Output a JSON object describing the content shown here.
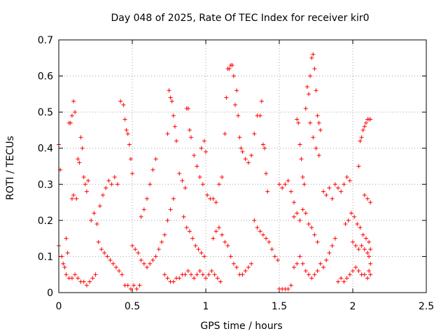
{
  "chart_data": {
    "type": "scatter",
    "title": "Day 048 of 2025, Rate Of TEC Index for receiver kir0",
    "xlabel": "GPS time / hours",
    "ylabel": "ROTI / TECUs",
    "xlim": [
      0,
      2.5
    ],
    "ylim": [
      0,
      0.7
    ],
    "xticks": [
      0,
      0.5,
      1,
      1.5,
      2,
      2.5
    ],
    "xtick_labels": [
      "0",
      "0.5",
      "1",
      "1.5",
      "2",
      "2.5"
    ],
    "yticks": [
      0,
      0.1,
      0.2,
      0.3,
      0.4,
      0.5,
      0.6,
      0.7
    ],
    "ytick_labels": [
      "0",
      "0.1",
      "0.2",
      "0.3",
      "0.4",
      "0.5",
      "0.6",
      "0.7"
    ],
    "grid": true,
    "marker": "+",
    "color": "#ff0000",
    "series": [
      {
        "values": [
          [
            0.0,
            0.41
          ],
          [
            0.01,
            0.34
          ],
          [
            0.0,
            0.13
          ],
          [
            0.02,
            0.1
          ],
          [
            0.03,
            0.08
          ],
          [
            0.04,
            0.07
          ],
          [
            0.05,
            0.15
          ],
          [
            0.06,
            0.11
          ],
          [
            0.07,
            0.47
          ],
          [
            0.08,
            0.47
          ],
          [
            0.09,
            0.49
          ],
          [
            0.1,
            0.53
          ],
          [
            0.11,
            0.5
          ],
          [
            0.09,
            0.26
          ],
          [
            0.1,
            0.27
          ],
          [
            0.12,
            0.26
          ],
          [
            0.13,
            0.37
          ],
          [
            0.14,
            0.36
          ],
          [
            0.15,
            0.43
          ],
          [
            0.16,
            0.4
          ],
          [
            0.17,
            0.32
          ],
          [
            0.18,
            0.3
          ],
          [
            0.19,
            0.28
          ],
          [
            0.2,
            0.31
          ],
          [
            0.05,
            0.05
          ],
          [
            0.07,
            0.04
          ],
          [
            0.09,
            0.04
          ],
          [
            0.11,
            0.05
          ],
          [
            0.13,
            0.04
          ],
          [
            0.15,
            0.03
          ],
          [
            0.17,
            0.03
          ],
          [
            0.19,
            0.02
          ],
          [
            0.21,
            0.03
          ],
          [
            0.23,
            0.04
          ],
          [
            0.25,
            0.05
          ],
          [
            0.22,
            0.2
          ],
          [
            0.24,
            0.22
          ],
          [
            0.26,
            0.19
          ],
          [
            0.28,
            0.24
          ],
          [
            0.3,
            0.27
          ],
          [
            0.32,
            0.29
          ],
          [
            0.34,
            0.31
          ],
          [
            0.36,
            0.3
          ],
          [
            0.38,
            0.32
          ],
          [
            0.4,
            0.3
          ],
          [
            0.27,
            0.14
          ],
          [
            0.29,
            0.12
          ],
          [
            0.31,
            0.11
          ],
          [
            0.33,
            0.1
          ],
          [
            0.35,
            0.09
          ],
          [
            0.37,
            0.08
          ],
          [
            0.39,
            0.07
          ],
          [
            0.41,
            0.06
          ],
          [
            0.43,
            0.05
          ],
          [
            0.42,
            0.53
          ],
          [
            0.44,
            0.52
          ],
          [
            0.45,
            0.48
          ],
          [
            0.46,
            0.45
          ],
          [
            0.47,
            0.44
          ],
          [
            0.48,
            0.41
          ],
          [
            0.49,
            0.37
          ],
          [
            0.5,
            0.33
          ],
          [
            0.45,
            0.02
          ],
          [
            0.47,
            0.02
          ],
          [
            0.49,
            0.01
          ],
          [
            0.51,
            0.02
          ],
          [
            0.53,
            0.01
          ],
          [
            0.55,
            0.02
          ],
          [
            0.5,
            0.13
          ],
          [
            0.52,
            0.12
          ],
          [
            0.54,
            0.11
          ],
          [
            0.56,
            0.09
          ],
          [
            0.58,
            0.08
          ],
          [
            0.6,
            0.07
          ],
          [
            0.62,
            0.08
          ],
          [
            0.64,
            0.09
          ],
          [
            0.66,
            0.1
          ],
          [
            0.68,
            0.12
          ],
          [
            0.56,
            0.21
          ],
          [
            0.58,
            0.23
          ],
          [
            0.6,
            0.26
          ],
          [
            0.62,
            0.3
          ],
          [
            0.64,
            0.34
          ],
          [
            0.66,
            0.37
          ],
          [
            0.7,
            0.14
          ],
          [
            0.72,
            0.16
          ],
          [
            0.74,
            0.2
          ],
          [
            0.76,
            0.23
          ],
          [
            0.78,
            0.26
          ],
          [
            0.75,
            0.56
          ],
          [
            0.76,
            0.54
          ],
          [
            0.77,
            0.53
          ],
          [
            0.78,
            0.49
          ],
          [
            0.79,
            0.46
          ],
          [
            0.74,
            0.44
          ],
          [
            0.8,
            0.42
          ],
          [
            0.72,
            0.05
          ],
          [
            0.74,
            0.04
          ],
          [
            0.76,
            0.03
          ],
          [
            0.78,
            0.03
          ],
          [
            0.8,
            0.04
          ],
          [
            0.82,
            0.04
          ],
          [
            0.84,
            0.05
          ],
          [
            0.86,
            0.05
          ],
          [
            0.88,
            0.06
          ],
          [
            0.9,
            0.05
          ],
          [
            0.82,
            0.33
          ],
          [
            0.84,
            0.31
          ],
          [
            0.86,
            0.29
          ],
          [
            0.87,
            0.51
          ],
          [
            0.88,
            0.51
          ],
          [
            0.89,
            0.45
          ],
          [
            0.9,
            0.43
          ],
          [
            0.92,
            0.38
          ],
          [
            0.94,
            0.35
          ],
          [
            0.96,
            0.32
          ],
          [
            0.98,
            0.3
          ],
          [
            0.97,
            0.4
          ],
          [
            0.99,
            0.42
          ],
          [
            1.0,
            0.39
          ],
          [
            0.85,
            0.21
          ],
          [
            0.87,
            0.18
          ],
          [
            0.89,
            0.17
          ],
          [
            0.91,
            0.15
          ],
          [
            0.93,
            0.13
          ],
          [
            0.95,
            0.12
          ],
          [
            0.97,
            0.11
          ],
          [
            0.99,
            0.1
          ],
          [
            0.92,
            0.04
          ],
          [
            0.94,
            0.05
          ],
          [
            0.96,
            0.06
          ],
          [
            0.98,
            0.05
          ],
          [
            1.0,
            0.04
          ],
          [
            1.02,
            0.05
          ],
          [
            1.04,
            0.06
          ],
          [
            1.06,
            0.05
          ],
          [
            1.08,
            0.04
          ],
          [
            1.1,
            0.03
          ],
          [
            1.01,
            0.27
          ],
          [
            1.03,
            0.26
          ],
          [
            1.05,
            0.26
          ],
          [
            1.07,
            0.25
          ],
          [
            1.09,
            0.3
          ],
          [
            1.11,
            0.32
          ],
          [
            1.13,
            0.44
          ],
          [
            1.14,
            0.54
          ],
          [
            1.15,
            0.62
          ],
          [
            1.16,
            0.62
          ],
          [
            1.17,
            0.63
          ],
          [
            1.18,
            0.63
          ],
          [
            1.19,
            0.6
          ],
          [
            1.2,
            0.52
          ],
          [
            1.21,
            0.56
          ],
          [
            1.22,
            0.49
          ],
          [
            1.23,
            0.43
          ],
          [
            1.24,
            0.4
          ],
          [
            1.25,
            0.39
          ],
          [
            1.27,
            0.37
          ],
          [
            1.29,
            0.36
          ],
          [
            1.31,
            0.38
          ],
          [
            1.05,
            0.15
          ],
          [
            1.07,
            0.17
          ],
          [
            1.09,
            0.18
          ],
          [
            1.11,
            0.16
          ],
          [
            1.13,
            0.14
          ],
          [
            1.15,
            0.13
          ],
          [
            1.17,
            0.1
          ],
          [
            1.19,
            0.08
          ],
          [
            1.21,
            0.07
          ],
          [
            1.23,
            0.05
          ],
          [
            1.25,
            0.05
          ],
          [
            1.27,
            0.06
          ],
          [
            1.29,
            0.07
          ],
          [
            1.31,
            0.08
          ],
          [
            1.33,
            0.44
          ],
          [
            1.35,
            0.49
          ],
          [
            1.37,
            0.49
          ],
          [
            1.38,
            0.53
          ],
          [
            1.39,
            0.41
          ],
          [
            1.4,
            0.4
          ],
          [
            1.41,
            0.33
          ],
          [
            1.42,
            0.28
          ],
          [
            1.33,
            0.2
          ],
          [
            1.35,
            0.18
          ],
          [
            1.37,
            0.17
          ],
          [
            1.39,
            0.16
          ],
          [
            1.41,
            0.15
          ],
          [
            1.43,
            0.14
          ],
          [
            1.45,
            0.12
          ],
          [
            1.47,
            0.1
          ],
          [
            1.49,
            0.09
          ],
          [
            1.5,
            0.01
          ],
          [
            1.52,
            0.01
          ],
          [
            1.54,
            0.01
          ],
          [
            1.56,
            0.01
          ],
          [
            1.58,
            0.02
          ],
          [
            1.5,
            0.3
          ],
          [
            1.52,
            0.29
          ],
          [
            1.54,
            0.3
          ],
          [
            1.56,
            0.31
          ],
          [
            1.58,
            0.28
          ],
          [
            1.6,
            0.25
          ],
          [
            1.62,
            0.48
          ],
          [
            1.63,
            0.47
          ],
          [
            1.64,
            0.41
          ],
          [
            1.65,
            0.37
          ],
          [
            1.66,
            0.32
          ],
          [
            1.67,
            0.3
          ],
          [
            1.68,
            0.51
          ],
          [
            1.69,
            0.57
          ],
          [
            1.7,
            0.55
          ],
          [
            1.71,
            0.6
          ],
          [
            1.72,
            0.65
          ],
          [
            1.73,
            0.66
          ],
          [
            1.74,
            0.62
          ],
          [
            1.75,
            0.56
          ],
          [
            1.76,
            0.49
          ],
          [
            1.77,
            0.47
          ],
          [
            1.78,
            0.45
          ],
          [
            1.71,
            0.47
          ],
          [
            1.73,
            0.43
          ],
          [
            1.75,
            0.4
          ],
          [
            1.77,
            0.38
          ],
          [
            1.6,
            0.21
          ],
          [
            1.62,
            0.22
          ],
          [
            1.64,
            0.2
          ],
          [
            1.66,
            0.23
          ],
          [
            1.68,
            0.22
          ],
          [
            1.7,
            0.19
          ],
          [
            1.72,
            0.18
          ],
          [
            1.74,
            0.16
          ],
          [
            1.76,
            0.14
          ],
          [
            1.6,
            0.07
          ],
          [
            1.62,
            0.08
          ],
          [
            1.64,
            0.1
          ],
          [
            1.66,
            0.08
          ],
          [
            1.68,
            0.06
          ],
          [
            1.7,
            0.05
          ],
          [
            1.72,
            0.04
          ],
          [
            1.74,
            0.05
          ],
          [
            1.76,
            0.06
          ],
          [
            1.78,
            0.08
          ],
          [
            1.8,
            0.07
          ],
          [
            1.82,
            0.09
          ],
          [
            1.84,
            0.11
          ],
          [
            1.86,
            0.13
          ],
          [
            1.88,
            0.15
          ],
          [
            1.8,
            0.28
          ],
          [
            1.82,
            0.27
          ],
          [
            1.84,
            0.29
          ],
          [
            1.86,
            0.26
          ],
          [
            1.88,
            0.3
          ],
          [
            1.9,
            0.29
          ],
          [
            1.92,
            0.28
          ],
          [
            1.94,
            0.3
          ],
          [
            1.96,
            0.32
          ],
          [
            1.98,
            0.31
          ],
          [
            1.9,
            0.03
          ],
          [
            1.92,
            0.04
          ],
          [
            1.94,
            0.03
          ],
          [
            1.96,
            0.04
          ],
          [
            1.98,
            0.05
          ],
          [
            2.0,
            0.06
          ],
          [
            2.02,
            0.07
          ],
          [
            2.04,
            0.06
          ],
          [
            2.06,
            0.05
          ],
          [
            2.08,
            0.05
          ],
          [
            2.1,
            0.04
          ],
          [
            2.12,
            0.05
          ],
          [
            1.95,
            0.19
          ],
          [
            1.97,
            0.2
          ],
          [
            1.99,
            0.22
          ],
          [
            2.01,
            0.21
          ],
          [
            2.03,
            0.19
          ],
          [
            2.05,
            0.18
          ],
          [
            2.07,
            0.16
          ],
          [
            2.09,
            0.15
          ],
          [
            2.11,
            0.14
          ],
          [
            2.0,
            0.14
          ],
          [
            2.02,
            0.13
          ],
          [
            2.04,
            0.12
          ],
          [
            2.06,
            0.13
          ],
          [
            2.08,
            0.12
          ],
          [
            2.1,
            0.11
          ],
          [
            2.04,
            0.35
          ],
          [
            2.05,
            0.42
          ],
          [
            2.06,
            0.43
          ],
          [
            2.07,
            0.45
          ],
          [
            2.08,
            0.46
          ],
          [
            2.09,
            0.47
          ],
          [
            2.1,
            0.48
          ],
          [
            2.11,
            0.48
          ],
          [
            2.12,
            0.48
          ],
          [
            2.08,
            0.27
          ],
          [
            2.1,
            0.26
          ],
          [
            2.12,
            0.25
          ],
          [
            2.12,
            0.12
          ],
          [
            2.11,
            0.1
          ],
          [
            2.12,
            0.08
          ],
          [
            2.11,
            0.06
          ]
        ]
      }
    ]
  }
}
